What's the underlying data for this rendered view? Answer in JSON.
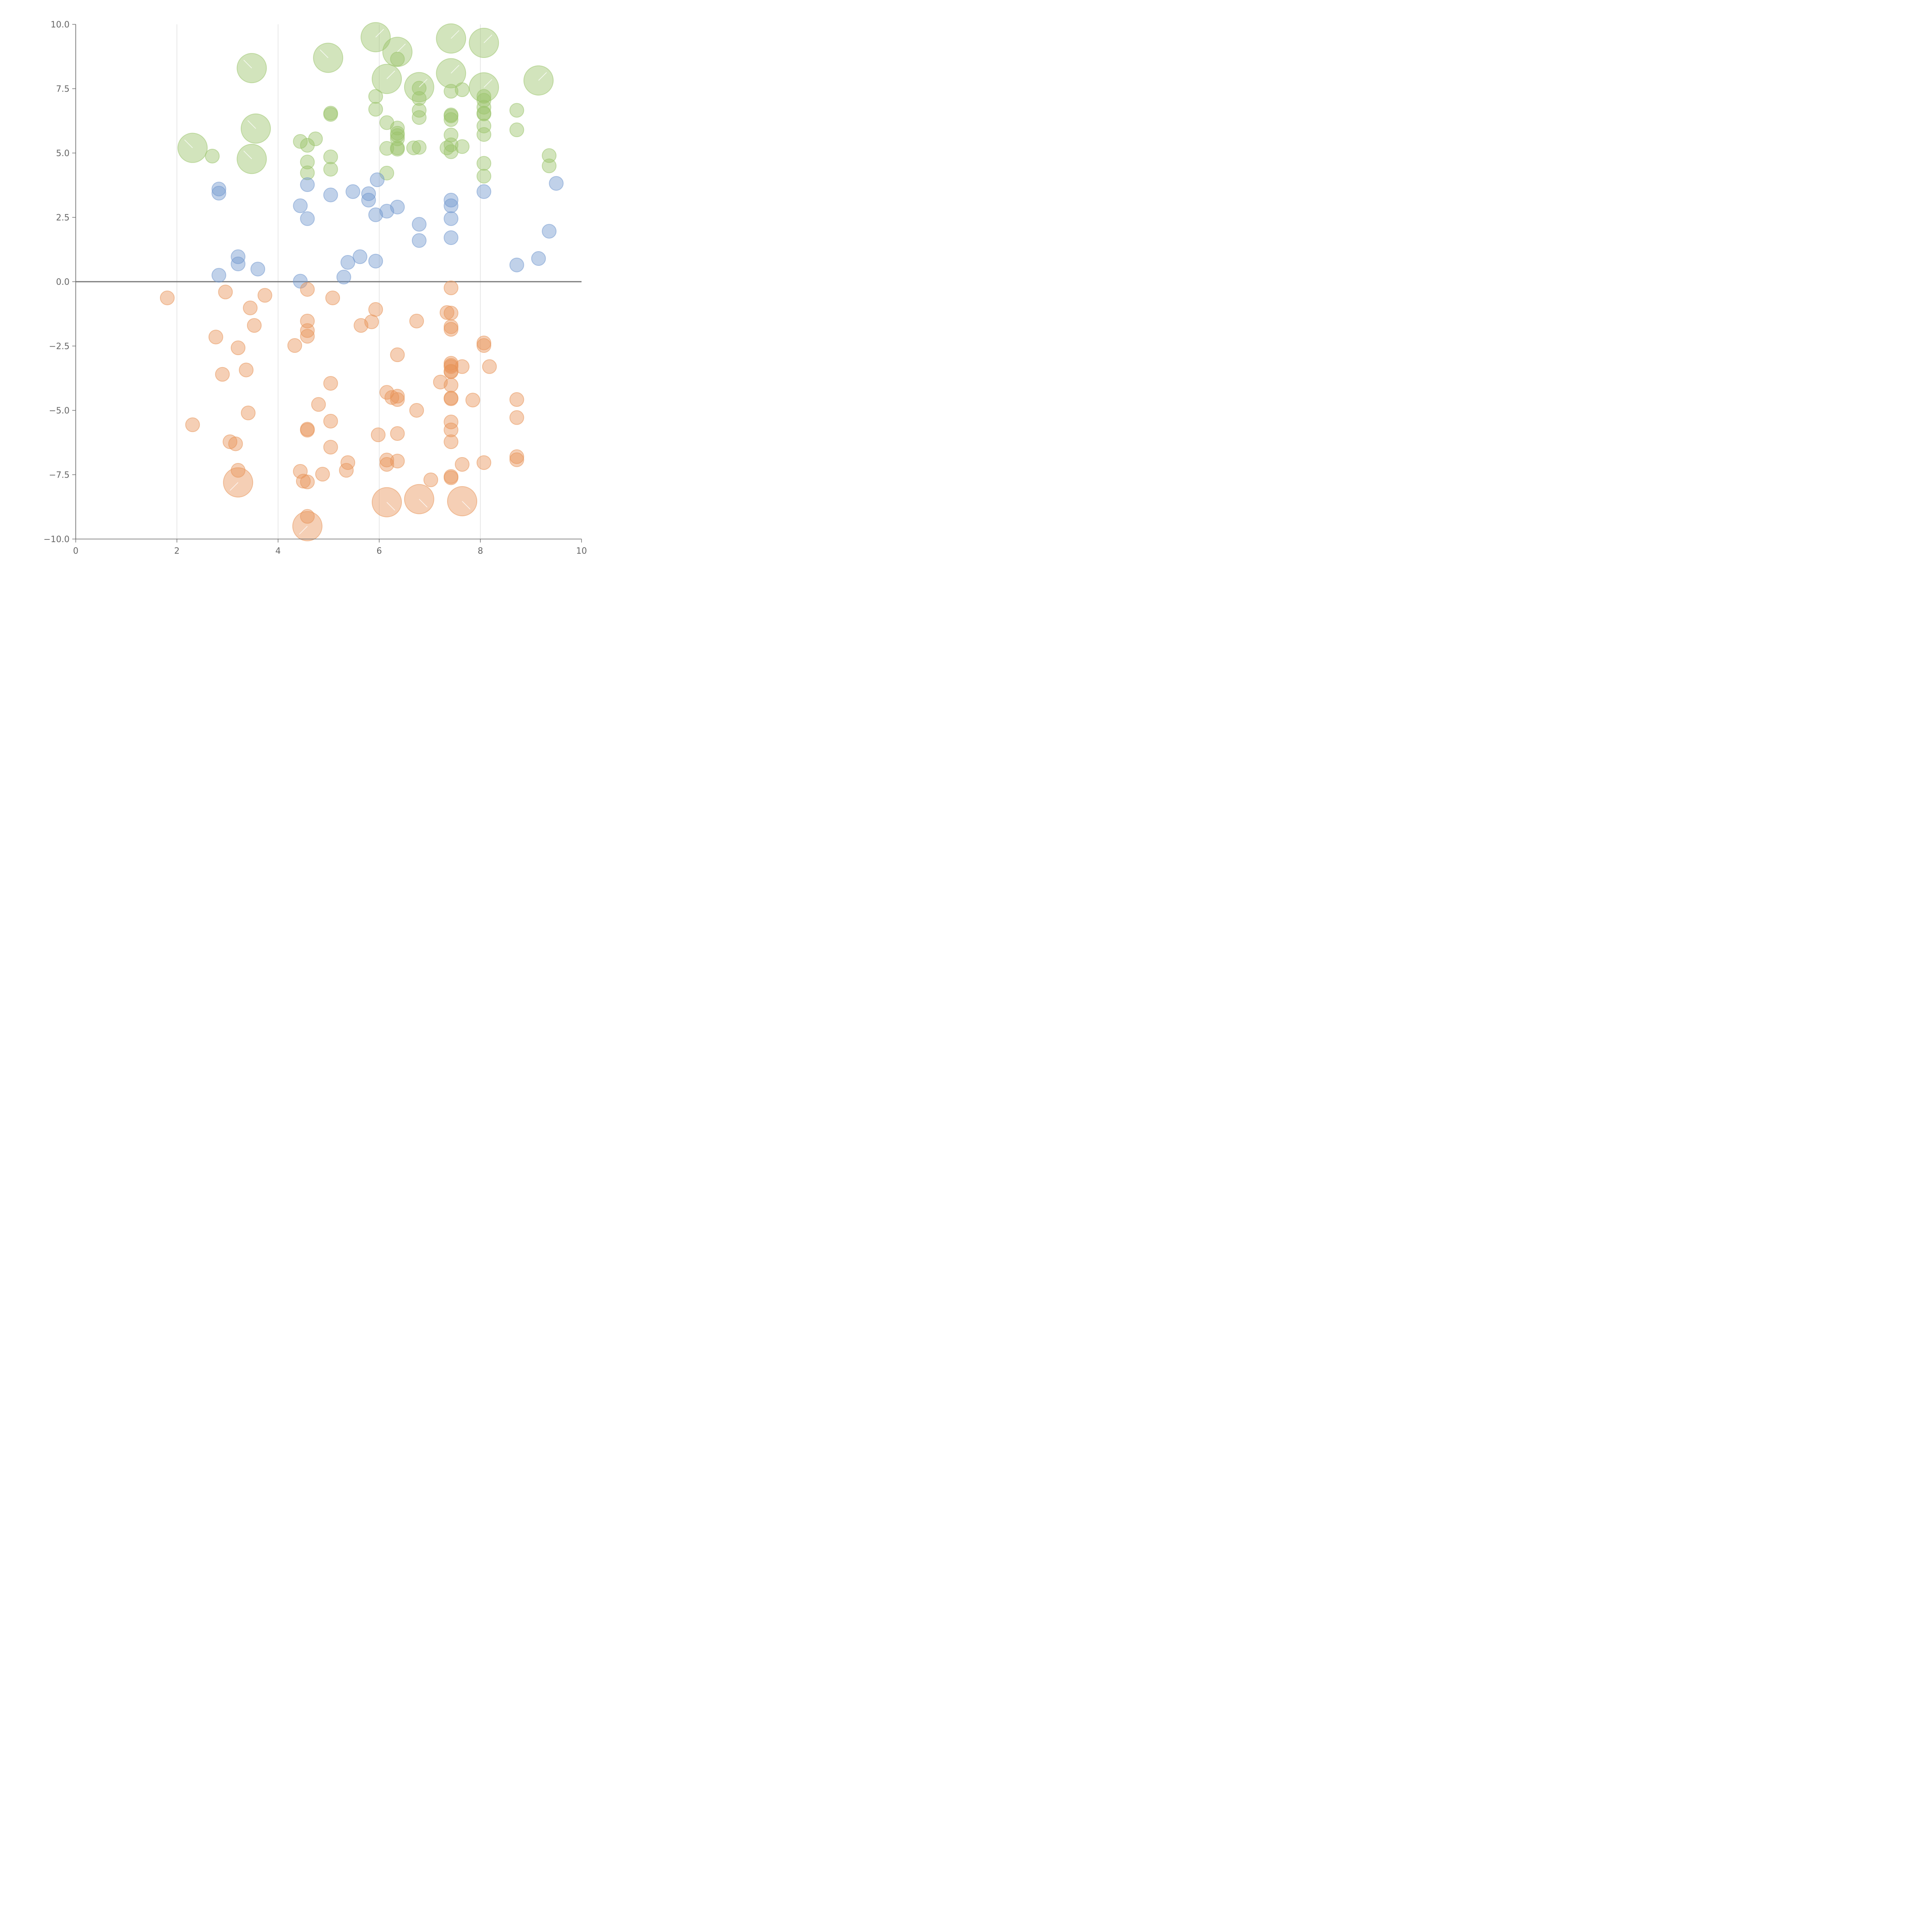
{
  "colors": {
    "green": "#9bc46b",
    "blue": "#7399cf",
    "orange": "#e8955a",
    "axis": "#666666",
    "grid": "#d9d9d9"
  },
  "chart_data": {
    "type": "scatter",
    "variant": "bubble",
    "title": "",
    "xlabel": "",
    "ylabel": "",
    "xlim": [
      0,
      10
    ],
    "ylim": [
      -10,
      10
    ],
    "x_ticks": [
      "0",
      "2",
      "4",
      "6",
      "8",
      "10"
    ],
    "y_ticks": [
      "10.0",
      "7.5",
      "5.0",
      "2.5",
      "0.0",
      "−2.5",
      "−5.0",
      "−7.5",
      "−10.0"
    ],
    "x_tick_values": [
      0,
      2,
      4,
      6,
      8,
      10
    ],
    "y_tick_values": [
      10,
      7.5,
      5,
      2.5,
      0,
      -2.5,
      -5,
      -7.5,
      -10
    ],
    "vertical_grid_at": [
      2,
      4,
      6,
      8
    ],
    "zero_line": true,
    "legend": "none",
    "series": [
      {
        "color": "green",
        "points": [
          [
            5.93,
            9.5,
            2
          ],
          [
            7.42,
            9.45,
            2
          ],
          [
            8.07,
            9.28,
            2
          ],
          [
            6.36,
            8.93,
            2
          ],
          [
            6.36,
            8.65,
            0
          ],
          [
            4.99,
            8.7,
            2
          ],
          [
            3.48,
            8.3,
            2
          ],
          [
            7.42,
            8.1,
            2
          ],
          [
            6.15,
            7.88,
            2
          ],
          [
            6.79,
            7.56,
            2
          ],
          [
            6.79,
            7.52,
            0
          ],
          [
            8.07,
            7.55,
            2
          ],
          [
            9.15,
            7.82,
            2
          ],
          [
            7.42,
            7.4,
            0
          ],
          [
            7.64,
            7.46,
            0
          ],
          [
            5.93,
            7.2,
            0
          ],
          [
            6.79,
            7.12,
            0
          ],
          [
            8.07,
            7.2,
            0
          ],
          [
            8.07,
            7.05,
            0
          ],
          [
            8.07,
            6.78,
            0
          ],
          [
            5.93,
            6.7,
            0
          ],
          [
            6.79,
            6.66,
            0
          ],
          [
            8.72,
            6.66,
            0
          ],
          [
            7.42,
            6.48,
            0
          ],
          [
            7.42,
            6.44,
            0
          ],
          [
            8.07,
            6.55,
            0
          ],
          [
            8.07,
            6.52,
            0
          ],
          [
            5.04,
            6.55,
            0
          ],
          [
            5.04,
            6.5,
            0
          ],
          [
            6.79,
            6.38,
            0
          ],
          [
            7.42,
            6.3,
            0
          ],
          [
            6.15,
            6.18,
            0
          ],
          [
            8.07,
            6.05,
            0
          ],
          [
            3.56,
            5.95,
            2
          ],
          [
            6.36,
            5.97,
            0
          ],
          [
            6.36,
            5.77,
            0
          ],
          [
            6.36,
            5.68,
            0
          ],
          [
            6.36,
            5.55,
            0
          ],
          [
            7.42,
            5.7,
            0
          ],
          [
            8.07,
            5.72,
            0
          ],
          [
            8.72,
            5.9,
            0
          ],
          [
            4.74,
            5.55,
            0
          ],
          [
            4.44,
            5.45,
            0
          ],
          [
            4.58,
            5.3,
            0
          ],
          [
            7.42,
            5.32,
            0
          ],
          [
            7.64,
            5.25,
            0
          ],
          [
            2.31,
            5.2,
            2
          ],
          [
            6.15,
            5.18,
            0
          ],
          [
            6.36,
            5.2,
            0
          ],
          [
            6.36,
            5.15,
            0
          ],
          [
            6.68,
            5.2,
            0
          ],
          [
            6.79,
            5.22,
            0
          ],
          [
            7.34,
            5.2,
            0
          ],
          [
            7.42,
            5.05,
            0
          ],
          [
            2.7,
            4.88,
            0
          ],
          [
            3.48,
            4.77,
            2
          ],
          [
            5.04,
            4.85,
            0
          ],
          [
            9.36,
            4.9,
            0
          ],
          [
            4.58,
            4.65,
            0
          ],
          [
            8.07,
            4.6,
            0
          ],
          [
            9.36,
            4.5,
            0
          ],
          [
            5.04,
            4.37,
            0
          ],
          [
            4.58,
            4.23,
            0
          ],
          [
            6.15,
            4.22,
            0
          ],
          [
            8.07,
            4.1,
            0
          ]
        ]
      },
      {
        "color": "blue",
        "points": [
          [
            5.96,
            3.96,
            0
          ],
          [
            9.5,
            3.82,
            0
          ],
          [
            4.58,
            3.77,
            0
          ],
          [
            2.83,
            3.6,
            0
          ],
          [
            5.48,
            3.5,
            0
          ],
          [
            8.07,
            3.5,
            0
          ],
          [
            2.83,
            3.44,
            0
          ],
          [
            5.79,
            3.42,
            0
          ],
          [
            5.04,
            3.37,
            0
          ],
          [
            5.79,
            3.17,
            0
          ],
          [
            7.42,
            3.17,
            0
          ],
          [
            4.44,
            2.95,
            0
          ],
          [
            7.42,
            2.95,
            0
          ],
          [
            6.36,
            2.9,
            0
          ],
          [
            6.15,
            2.74,
            0
          ],
          [
            5.93,
            2.6,
            0
          ],
          [
            4.58,
            2.45,
            0
          ],
          [
            7.42,
            2.45,
            0
          ],
          [
            6.79,
            2.23,
            0
          ],
          [
            9.36,
            1.96,
            0
          ],
          [
            7.42,
            1.71,
            0
          ],
          [
            6.79,
            1.6,
            0
          ],
          [
            3.21,
            0.97,
            0
          ],
          [
            5.62,
            0.97,
            0
          ],
          [
            9.15,
            0.9,
            0
          ],
          [
            5.93,
            0.8,
            0
          ],
          [
            5.38,
            0.75,
            0
          ],
          [
            3.21,
            0.69,
            0
          ],
          [
            8.72,
            0.65,
            0
          ],
          [
            3.6,
            0.49,
            0
          ],
          [
            2.83,
            0.25,
            0
          ],
          [
            5.3,
            0.18,
            0
          ],
          [
            4.44,
            0.02,
            0
          ]
        ]
      },
      {
        "color": "orange",
        "points": [
          [
            7.42,
            -0.24,
            0
          ],
          [
            4.58,
            -0.3,
            0
          ],
          [
            2.96,
            -0.4,
            0
          ],
          [
            3.74,
            -0.53,
            0
          ],
          [
            1.81,
            -0.63,
            0
          ],
          [
            5.08,
            -0.63,
            0
          ],
          [
            3.45,
            -1.02,
            0
          ],
          [
            5.93,
            -1.08,
            0
          ],
          [
            7.34,
            -1.2,
            0
          ],
          [
            7.42,
            -1.22,
            0
          ],
          [
            4.58,
            -1.53,
            0
          ],
          [
            5.85,
            -1.56,
            0
          ],
          [
            6.74,
            -1.53,
            0
          ],
          [
            3.53,
            -1.7,
            0
          ],
          [
            5.64,
            -1.7,
            0
          ],
          [
            7.42,
            -1.75,
            0
          ],
          [
            7.42,
            -1.85,
            0
          ],
          [
            4.58,
            -1.9,
            0
          ],
          [
            4.58,
            -2.12,
            0
          ],
          [
            2.77,
            -2.15,
            0
          ],
          [
            8.07,
            -2.38,
            0
          ],
          [
            4.33,
            -2.48,
            0
          ],
          [
            8.07,
            -2.48,
            0
          ],
          [
            3.21,
            -2.57,
            0
          ],
          [
            6.36,
            -2.84,
            0
          ],
          [
            7.42,
            -3.17,
            0
          ],
          [
            7.42,
            -3.25,
            0
          ],
          [
            7.42,
            -3.3,
            0
          ],
          [
            7.64,
            -3.3,
            0
          ],
          [
            8.18,
            -3.3,
            0
          ],
          [
            3.37,
            -3.43,
            0
          ],
          [
            7.42,
            -3.48,
            0
          ],
          [
            7.42,
            -3.5,
            0
          ],
          [
            2.9,
            -3.6,
            0
          ],
          [
            7.21,
            -3.9,
            0
          ],
          [
            5.04,
            -3.95,
            0
          ],
          [
            7.42,
            -4.02,
            0
          ],
          [
            6.15,
            -4.3,
            0
          ],
          [
            6.36,
            -4.45,
            0
          ],
          [
            6.25,
            -4.5,
            0
          ],
          [
            7.42,
            -4.52,
            0
          ],
          [
            7.42,
            -4.55,
            0
          ],
          [
            6.36,
            -4.58,
            0
          ],
          [
            8.72,
            -4.58,
            0
          ],
          [
            7.85,
            -4.6,
            0
          ],
          [
            4.8,
            -4.77,
            0
          ],
          [
            6.74,
            -5.0,
            0
          ],
          [
            3.41,
            -5.1,
            0
          ],
          [
            8.72,
            -5.28,
            0
          ],
          [
            5.04,
            -5.42,
            0
          ],
          [
            7.42,
            -5.45,
            0
          ],
          [
            2.31,
            -5.56,
            0
          ],
          [
            4.58,
            -5.73,
            0
          ],
          [
            4.58,
            -5.77,
            0
          ],
          [
            7.42,
            -5.76,
            0
          ],
          [
            6.36,
            -5.9,
            0
          ],
          [
            5.98,
            -5.95,
            0
          ],
          [
            3.05,
            -6.22,
            0
          ],
          [
            7.42,
            -6.22,
            0
          ],
          [
            3.16,
            -6.3,
            0
          ],
          [
            5.04,
            -6.43,
            0
          ],
          [
            8.72,
            -6.8,
            0
          ],
          [
            6.15,
            -6.93,
            0
          ],
          [
            8.72,
            -6.92,
            0
          ],
          [
            6.36,
            -6.97,
            0
          ],
          [
            5.38,
            -7.03,
            0
          ],
          [
            8.07,
            -7.03,
            0
          ],
          [
            6.15,
            -7.1,
            0
          ],
          [
            7.64,
            -7.1,
            0
          ],
          [
            3.21,
            -7.33,
            0
          ],
          [
            5.35,
            -7.33,
            0
          ],
          [
            4.44,
            -7.37,
            0
          ],
          [
            4.88,
            -7.48,
            0
          ],
          [
            7.42,
            -7.57,
            0
          ],
          [
            7.42,
            -7.62,
            0
          ],
          [
            7.02,
            -7.7,
            0
          ],
          [
            4.5,
            -7.75,
            0
          ],
          [
            4.58,
            -7.78,
            0
          ],
          [
            3.21,
            -7.8,
            2
          ],
          [
            6.15,
            -8.57,
            2
          ],
          [
            6.79,
            -8.45,
            2
          ],
          [
            7.64,
            -8.53,
            2
          ],
          [
            4.58,
            -9.12,
            0
          ],
          [
            4.58,
            -9.5,
            2
          ]
        ]
      }
    ]
  }
}
